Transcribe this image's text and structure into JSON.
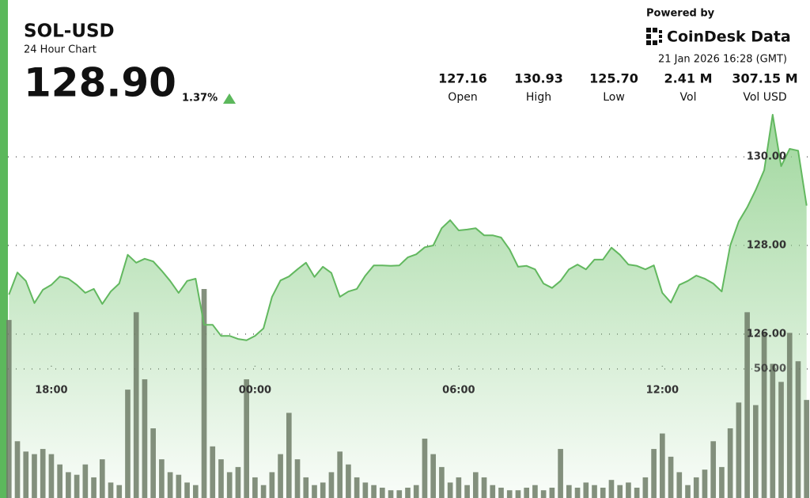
{
  "header": {
    "symbol": "SOL-USD",
    "subtitle": "24 Hour Chart",
    "price": "128.90",
    "change": "1.37%",
    "powered_by": "Powered by",
    "brand": "CoinDesk Data",
    "timestamp": "21 Jan 2026 16:28 (GMT)",
    "stats": [
      {
        "value": "127.16",
        "label": "Open"
      },
      {
        "value": "130.93",
        "label": "High"
      },
      {
        "value": "125.70",
        "label": "Low"
      },
      {
        "value": "2.41 M",
        "label": "Vol"
      },
      {
        "value": "307.15 M",
        "label": "Vol USD"
      }
    ]
  },
  "chart_data": {
    "type": "line",
    "x": [
      16.75,
      17,
      17.25,
      17.5,
      17.75,
      18,
      18.25,
      18.5,
      18.75,
      19,
      19.25,
      19.5,
      19.75,
      20,
      20.25,
      20.5,
      20.75,
      21,
      21.25,
      21.5,
      21.75,
      22,
      22.25,
      22.5,
      22.75,
      23,
      23.25,
      23.5,
      23.75,
      24,
      24.25,
      24.5,
      24.75,
      25,
      25.25,
      25.5,
      25.75,
      26,
      26.25,
      26.5,
      26.75,
      27,
      27.25,
      27.5,
      27.75,
      28,
      28.25,
      28.5,
      28.75,
      29,
      29.25,
      29.5,
      29.75,
      30,
      30.25,
      30.5,
      30.75,
      31,
      31.25,
      31.5,
      31.75,
      32,
      32.25,
      32.5,
      32.75,
      33,
      33.25,
      33.5,
      33.75,
      34,
      34.25,
      34.5,
      34.75,
      35,
      35.25,
      35.5,
      35.75,
      36,
      36.25,
      36.5,
      36.75,
      37,
      37.25,
      37.5,
      37.75,
      38,
      38.25,
      38.5,
      38.75,
      39,
      39.25,
      39.5,
      39.75,
      40,
      40.25
    ],
    "series": [
      {
        "name": "Price",
        "color": "#62b85f",
        "values": [
          126.89,
          127.39,
          127.2,
          126.7,
          127.0,
          127.11,
          127.3,
          127.25,
          127.11,
          126.93,
          127.02,
          126.68,
          126.96,
          127.14,
          127.79,
          127.61,
          127.7,
          127.64,
          127.43,
          127.2,
          126.93,
          127.2,
          127.25,
          126.21,
          126.21,
          125.96,
          125.96,
          125.89,
          125.86,
          125.96,
          126.13,
          126.84,
          127.21,
          127.3,
          127.46,
          127.61,
          127.29,
          127.52,
          127.38,
          126.84,
          126.96,
          127.02,
          127.32,
          127.55,
          127.55,
          127.54,
          127.55,
          127.73,
          127.8,
          127.96,
          128.0,
          128.39,
          128.57,
          128.34,
          128.36,
          128.39,
          128.23,
          128.23,
          128.18,
          127.91,
          127.52,
          127.54,
          127.46,
          127.14,
          127.04,
          127.2,
          127.46,
          127.57,
          127.46,
          127.68,
          127.68,
          127.95,
          127.79,
          127.57,
          127.54,
          127.46,
          127.55,
          126.93,
          126.71,
          127.11,
          127.2,
          127.32,
          127.25,
          127.14,
          126.96,
          128.0,
          128.54,
          128.86,
          129.25,
          129.7,
          130.95,
          129.79,
          130.18,
          130.14,
          128.9
        ]
      },
      {
        "name": "Volume",
        "color": "#6f7d67",
        "axis": "y2",
        "values": [
          69,
          22,
          18,
          17,
          19,
          17,
          13,
          10,
          9,
          13,
          8,
          15,
          6,
          5,
          42,
          72,
          46,
          27,
          15,
          10,
          9,
          6,
          5,
          81,
          20,
          15,
          10,
          12,
          46,
          8,
          5,
          10,
          17,
          33,
          15,
          8,
          5,
          6,
          10,
          18,
          13,
          8,
          6,
          5,
          4,
          3,
          3,
          4,
          5,
          23,
          17,
          12,
          6,
          8,
          5,
          10,
          8,
          5,
          4,
          3,
          3,
          4,
          5,
          3,
          4,
          19,
          5,
          4,
          6,
          5,
          4,
          7,
          5,
          6,
          4,
          8,
          19,
          25,
          16,
          10,
          5,
          8,
          11,
          22,
          12,
          27,
          37,
          72,
          36,
          64,
          52,
          45,
          64,
          53,
          38
        ]
      }
    ],
    "xlim": [
      16.72,
      40.35
    ],
    "xticks": [
      {
        "value": 18,
        "label": "18:00"
      },
      {
        "value": 24,
        "label": "00:00"
      },
      {
        "value": 30,
        "label": "06:00"
      },
      {
        "value": 36,
        "label": "12:00"
      }
    ],
    "ylim": [
      122.3,
      133.54
    ],
    "yticks": [
      {
        "value": 126,
        "label": "126.00"
      },
      {
        "value": 128,
        "label": "128.00"
      },
      {
        "value": 130,
        "label": "130.00"
      }
    ],
    "y2lim": [
      0,
      193
    ],
    "y2ticks": [
      {
        "value": 50,
        "label": "50.00"
      }
    ],
    "grid": true
  }
}
